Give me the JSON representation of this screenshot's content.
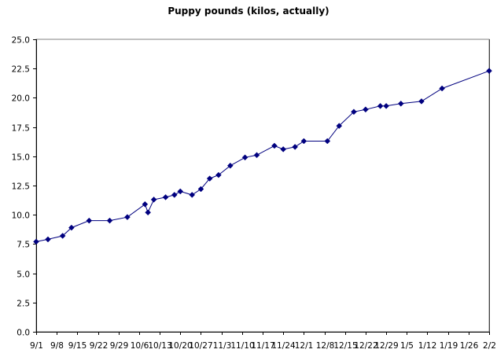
{
  "chart_data": {
    "type": "line",
    "title": "Puppy pounds (kilos, actually)",
    "xlabel": "",
    "ylabel": "",
    "x_tick_labels": [
      "9/1",
      "9/8",
      "9/15",
      "9/22",
      "9/29",
      "10/6",
      "10/13",
      "10/20",
      "10/27",
      "11/3",
      "11/10",
      "11/17",
      "11/24",
      "12/1",
      "12/8",
      "12/15",
      "12/22",
      "12/29",
      "1/5",
      "1/12",
      "1/19",
      "1/26",
      "2/2"
    ],
    "y_tick_labels": [
      "0.0",
      "2.5",
      "5.0",
      "7.5",
      "10.0",
      "12.5",
      "15.0",
      "17.5",
      "20.0",
      "22.5",
      "25.0"
    ],
    "ylim": [
      0,
      25
    ],
    "y_tick_step": 2.5,
    "grid": true,
    "line_color": "#00007f",
    "marker": "diamond",
    "series": [
      {
        "x": [
          "9/1",
          "9/5",
          "9/10",
          "9/13",
          "9/19",
          "9/26",
          "10/2",
          "10/8",
          "10/9",
          "10/11",
          "10/15",
          "10/18",
          "10/20",
          "10/24",
          "10/27",
          "10/30",
          "11/2",
          "11/6",
          "11/11",
          "11/15",
          "11/21",
          "11/24",
          "11/28",
          "12/1",
          "12/9",
          "12/13",
          "12/18",
          "12/22",
          "12/27",
          "12/29",
          "1/3",
          "1/10",
          "1/17",
          "2/2"
        ],
        "y": [
          7.7,
          7.9,
          8.2,
          8.9,
          9.5,
          9.5,
          9.8,
          10.9,
          10.2,
          11.3,
          11.5,
          11.7,
          12.0,
          11.7,
          12.2,
          13.1,
          13.4,
          14.2,
          14.9,
          15.1,
          15.9,
          15.6,
          15.8,
          16.3,
          16.3,
          17.6,
          18.8,
          19.0,
          19.3,
          19.3,
          19.5,
          19.7,
          20.8,
          22.3
        ]
      }
    ]
  }
}
